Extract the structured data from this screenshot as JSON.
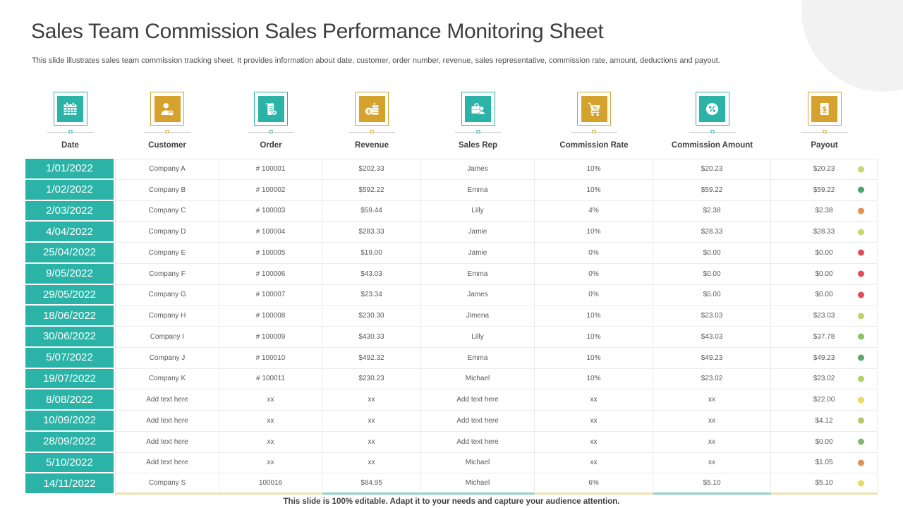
{
  "slide": {
    "title": "Sales Team Commission Sales Performance Monitoring Sheet",
    "subtitle": "This slide illustrates sales team commission tracking sheet. It provides information about date, customer, order number, revenue, sales representative, commission rate, amount, deductions and payout.",
    "footer_note": "This slide is 100% editable. Adapt it to your  needs and capture your audience attention."
  },
  "colors": {
    "teal": "#2bb3a7",
    "gold": "#d6a22e",
    "pale_teal": "#8fd2cb",
    "pale_gold": "#ece1b0",
    "corner_circle": "#f2f2f2",
    "grid_line": "#ebebeb",
    "header_text": "#3f3f3f",
    "cell_text": "#595959"
  },
  "table": {
    "columns": [
      {
        "key": "date",
        "label": "Date",
        "icon": "calendar-icon",
        "accent": "teal"
      },
      {
        "key": "customer",
        "label": "Customer",
        "icon": "customer-icon",
        "accent": "gold"
      },
      {
        "key": "order",
        "label": "Order",
        "icon": "order-icon",
        "accent": "teal"
      },
      {
        "key": "revenue",
        "label": "Revenue",
        "icon": "revenue-icon",
        "accent": "gold"
      },
      {
        "key": "sales_rep",
        "label": "Sales Rep",
        "icon": "sales-rep-icon",
        "accent": "teal"
      },
      {
        "key": "commission_rate",
        "label": "Commission Rate",
        "icon": "commission-rate-icon",
        "accent": "gold"
      },
      {
        "key": "commission_amount",
        "label": "Commission Amount",
        "icon": "commission-amount-icon",
        "accent": "teal"
      },
      {
        "key": "payout",
        "label": "Payout",
        "icon": "payout-icon",
        "accent": "gold"
      }
    ],
    "footer_accents": [
      "pale_gold",
      "pale_gold",
      "pale_teal",
      "pale_teal",
      "pale_gold",
      "pale_teal",
      "pale_gold"
    ],
    "rows": [
      {
        "date": "1/01/2022",
        "customer": "Company A",
        "order": "# 100001",
        "revenue": "$202.33",
        "sales_rep": "James",
        "commission_rate": "10%",
        "commission_amount": "$20.23",
        "payout": "$20.23",
        "status_color": "#c9d66b"
      },
      {
        "date": "1/02/2022",
        "customer": "Company B",
        "order": "# 100002",
        "revenue": "$592.22",
        "sales_rep": "Emma",
        "commission_rate": "10%",
        "commission_amount": "$59.22",
        "payout": "$59.22",
        "status_color": "#4aa56b"
      },
      {
        "date": "2/03/2022",
        "customer": "Company C",
        "order": "# 100003",
        "revenue": "$59.44",
        "sales_rep": "Lilly",
        "commission_rate": "4%",
        "commission_amount": "$2.38",
        "payout": "$2.38",
        "status_color": "#e8914f"
      },
      {
        "date": "4/04/2022",
        "customer": "Company D",
        "order": "# 100004",
        "revenue": "$283.33",
        "sales_rep": "Jamie",
        "commission_rate": "10%",
        "commission_amount": "$28.33",
        "payout": "$28.33",
        "status_color": "#c9d66b"
      },
      {
        "date": "25/04/2022",
        "customer": "Company E",
        "order": "# 100005",
        "revenue": "$19.00",
        "sales_rep": "Jamie",
        "commission_rate": "0%",
        "commission_amount": "$0.00",
        "payout": "$0.00",
        "status_color": "#e04d55"
      },
      {
        "date": "9/05/2022",
        "customer": "Company F",
        "order": "# 100006",
        "revenue": "$43.03",
        "sales_rep": "Emma",
        "commission_rate": "0%",
        "commission_amount": "$0.00",
        "payout": "$0.00",
        "status_color": "#e04d55"
      },
      {
        "date": "29/05/2022",
        "customer": "Company G",
        "order": "# 100007",
        "revenue": "$23.34",
        "sales_rep": "James",
        "commission_rate": "0%",
        "commission_amount": "$0.00",
        "payout": "$0.00",
        "status_color": "#e04d55"
      },
      {
        "date": "18/06/2022",
        "customer": "Company H",
        "order": "# 100008",
        "revenue": "$230.30",
        "sales_rep": "Jimena",
        "commission_rate": "10%",
        "commission_amount": "$23.03",
        "payout": "$23.03",
        "status_color": "#bed36b"
      },
      {
        "date": "30/06/2022",
        "customer": "Company I",
        "order": "# 100009",
        "revenue": "$430.33",
        "sales_rep": "Lilly",
        "commission_rate": "10%",
        "commission_amount": "$43.03",
        "payout": "$37.78",
        "status_color": "#8cc06b"
      },
      {
        "date": "5/07/2022",
        "customer": "Company J",
        "order": "# 100010",
        "revenue": "$492.32",
        "sales_rep": "Emma",
        "commission_rate": "10%",
        "commission_amount": "$49.23",
        "payout": "$49.23",
        "status_color": "#57aa68"
      },
      {
        "date": "19/07/2022",
        "customer": "Company K",
        "order": "# 100011",
        "revenue": "$230.23",
        "sales_rep": "Michael",
        "commission_rate": "10%",
        "commission_amount": "$23.02",
        "payout": "$23.02",
        "status_color": "#b5d16b"
      },
      {
        "date": "8/08/2022",
        "customer": "Add text here",
        "order": "xx",
        "revenue": "xx",
        "sales_rep": "Add text here",
        "commission_rate": "xx",
        "commission_amount": "xx",
        "payout": "$22.00",
        "status_color": "#ecd95e"
      },
      {
        "date": "10/09/2022",
        "customer": "Add text here",
        "order": "xx",
        "revenue": "xx",
        "sales_rep": "Add text here",
        "commission_rate": "xx",
        "commission_amount": "xx",
        "payout": "$4.12",
        "status_color": "#b3c96b"
      },
      {
        "date": "28/09/2022",
        "customer": "Add text here",
        "order": "xx",
        "revenue": "xx",
        "sales_rep": "Add text here",
        "commission_rate": "xx",
        "commission_amount": "xx",
        "payout": "$0.00",
        "status_color": "#7dbb6b"
      },
      {
        "date": "5/10/2022",
        "customer": "Add text here",
        "order": "xx",
        "revenue": "xx",
        "sales_rep": "Michael",
        "commission_rate": "xx",
        "commission_amount": "xx",
        "payout": "$1.05",
        "status_color": "#dd9255"
      },
      {
        "date": "14/11/2022",
        "customer": "Company S",
        "order": "100016",
        "revenue": "$84.95",
        "sales_rep": "Michael",
        "commission_rate": "6%",
        "commission_amount": "$5.10",
        "payout": "$5.10",
        "status_color": "#ecd95e"
      }
    ]
  }
}
